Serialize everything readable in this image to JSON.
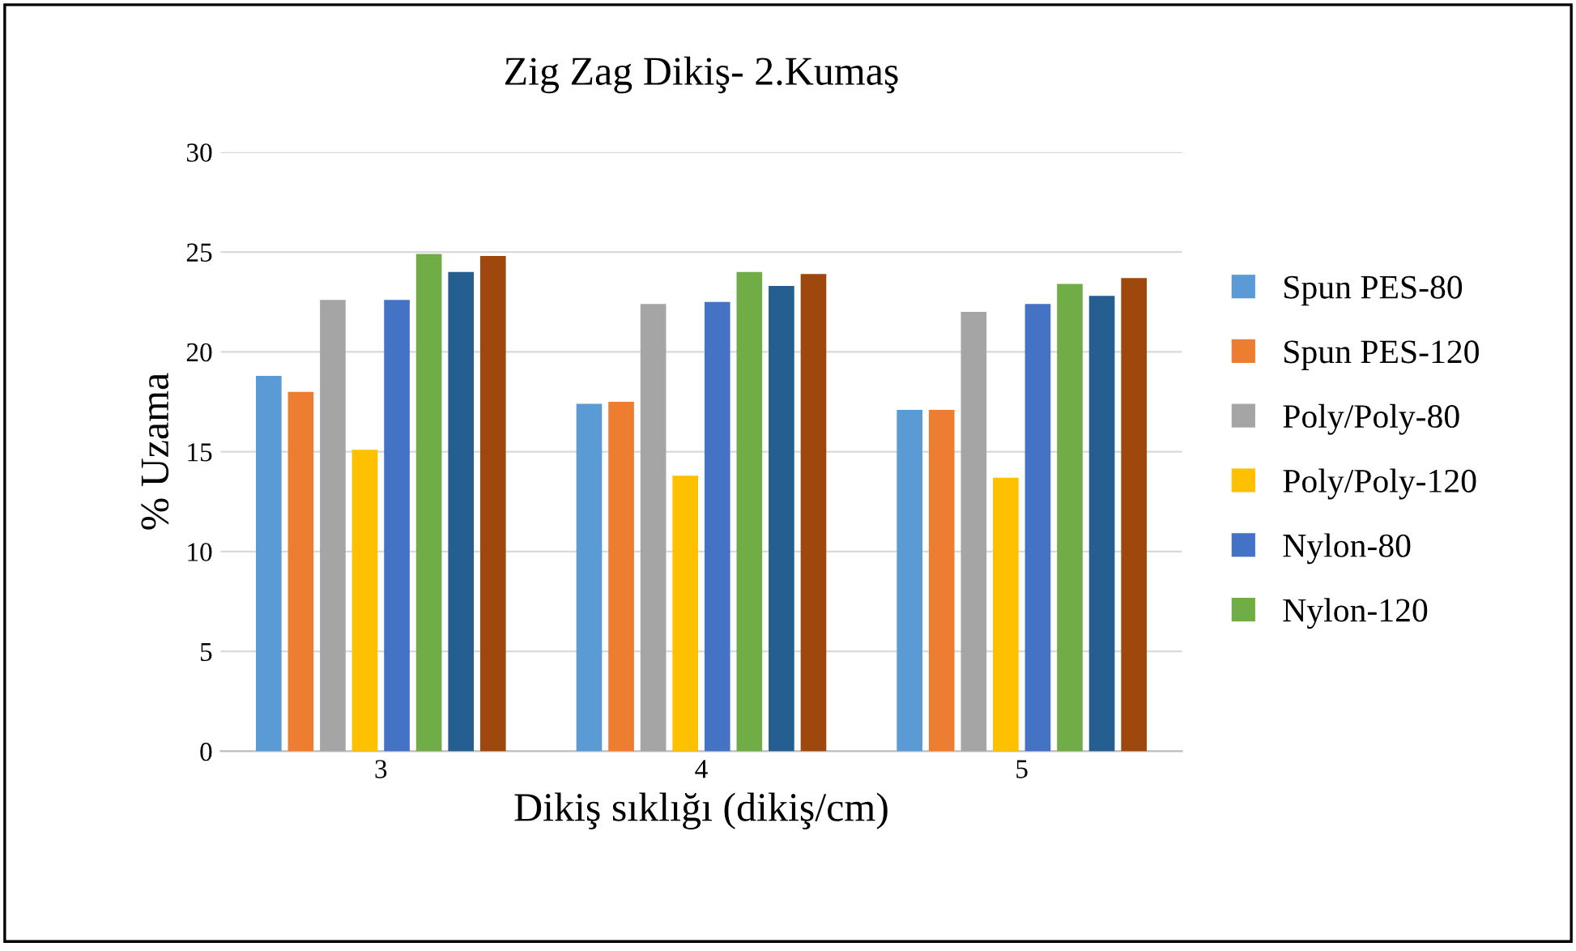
{
  "chart_data": {
    "type": "bar",
    "title": "Zig Zag Dikiş- 2.Kumaş",
    "xlabel": "Dikiş sıklığı (dikiş/cm)",
    "ylabel": "% Uzama",
    "categories": [
      "3",
      "4",
      "5"
    ],
    "series": [
      {
        "name": "Spun PES-80",
        "color": "#5b9bd5",
        "values": [
          18.8,
          17.4,
          17.1
        ]
      },
      {
        "name": "Spun PES-120",
        "color": "#ed7d31",
        "values": [
          18.0,
          17.5,
          17.1
        ]
      },
      {
        "name": "Poly/Poly-80",
        "color": "#a5a5a5",
        "values": [
          22.6,
          22.4,
          22.0
        ]
      },
      {
        "name": "Poly/Poly-120",
        "color": "#ffc000",
        "values": [
          15.1,
          13.8,
          13.7
        ]
      },
      {
        "name": "Nylon-80",
        "color": "#4472c4",
        "values": [
          22.6,
          22.5,
          22.4
        ]
      },
      {
        "name": "Nylon-120",
        "color": "#70ad47",
        "values": [
          24.9,
          24.0,
          23.4
        ]
      },
      {
        "color": "#255e91",
        "values": [
          24.0,
          23.3,
          22.8
        ]
      },
      {
        "color": "#9e480e",
        "values": [
          24.8,
          23.9,
          23.7
        ]
      }
    ],
    "ylim": [
      0,
      30
    ],
    "yticks": [
      0,
      5,
      10,
      15,
      20,
      25,
      30
    ],
    "grid": "y",
    "legend": "right"
  }
}
